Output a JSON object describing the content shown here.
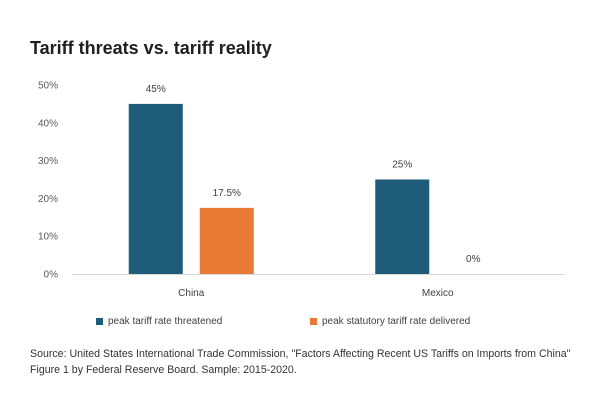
{
  "chart_data": {
    "type": "bar",
    "title": "Tariff threats vs. tariff reality",
    "categories": [
      "China",
      "Mexico"
    ],
    "series": [
      {
        "name": "peak tariff rate threatened",
        "values": [
          45,
          25
        ],
        "labels": [
          "45%",
          "25%"
        ],
        "color": "#1f5c7a"
      },
      {
        "name": "peak statutory tariff rate delivered",
        "values": [
          17.5,
          0
        ],
        "labels": [
          "17.5%",
          "0%"
        ],
        "color": "#e87a35"
      }
    ],
    "ylim": [
      0,
      50
    ],
    "yticks": [
      "0%",
      "10%",
      "20%",
      "30%",
      "40%",
      "50%"
    ],
    "ytick_values": [
      0,
      10,
      20,
      30,
      40,
      50
    ],
    "grid": false,
    "legend_position": "bottom",
    "xlabel": "",
    "ylabel": ""
  },
  "source_text": "Source: United States International Trade Commission, \"Factors Affecting Recent US Tariffs on Imports from China\" Figure 1 by Federal Reserve Board. Sample: 2015-2020."
}
